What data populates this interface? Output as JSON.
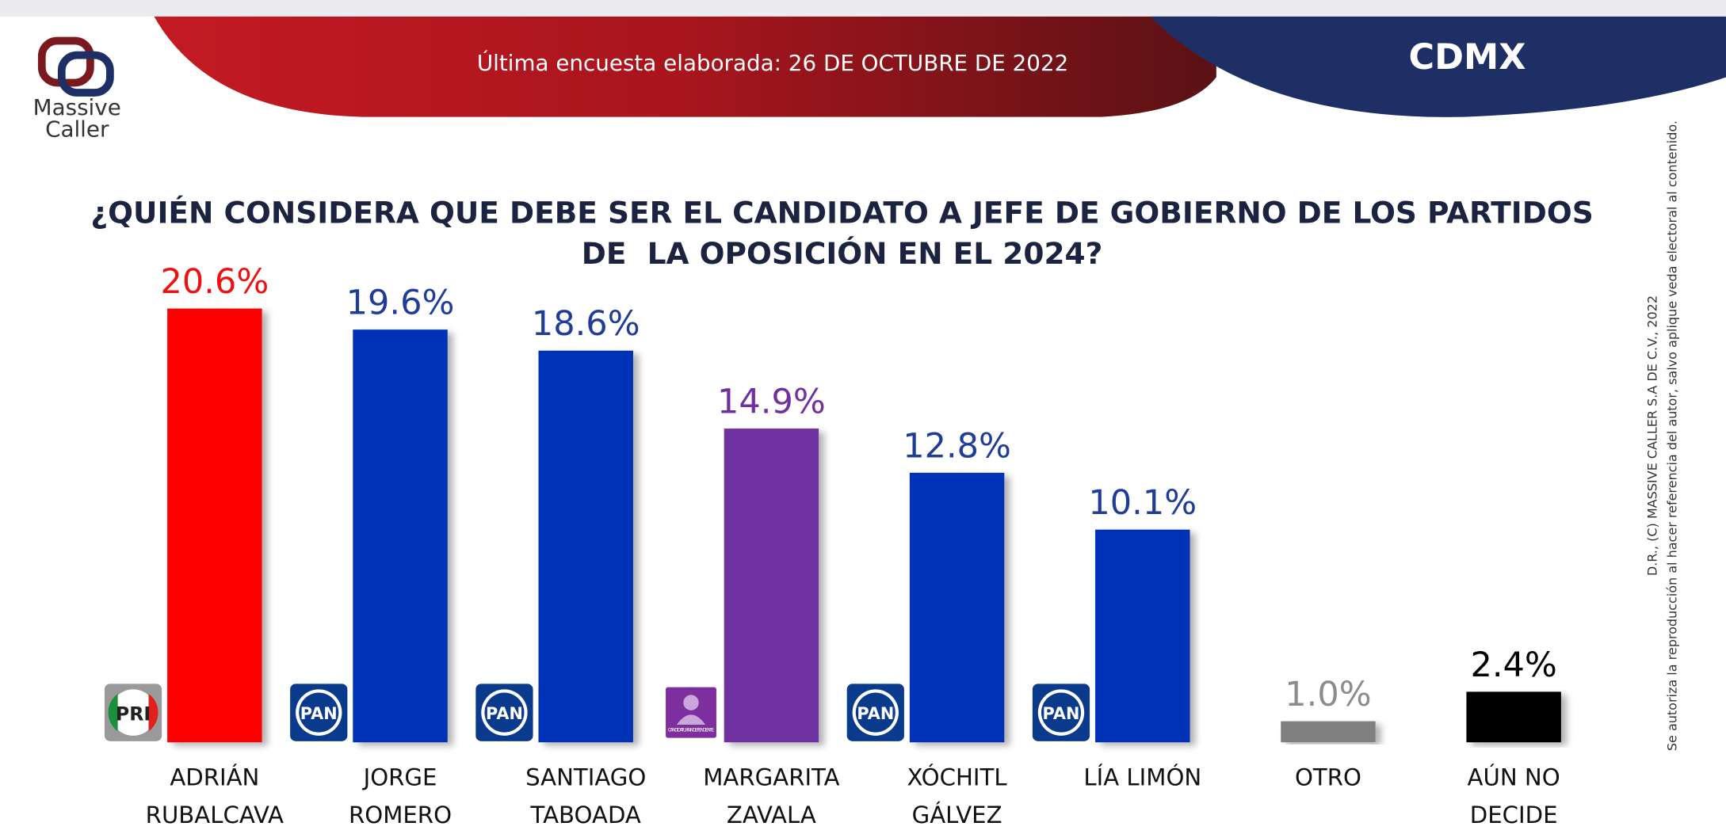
{
  "header": {
    "subtitle": "Última encuesta elaborada: 26 DE OCTUBRE DE 2022",
    "region": "CDMX",
    "logo_line1": "Massive",
    "logo_line2": "Caller"
  },
  "side_note": {
    "line1": "D.R., (C) MASSIVE CALLER S.A DE C.V., 2022",
    "line2": "Se autoriza la reproducción al hacer referencia del autor, salvo aplique veda electoral al contenido."
  },
  "chart_data": {
    "type": "bar",
    "title": "¿QUIÉN CONSIDERA QUE DEBE SER EL CANDIDATO A JEFE DE GOBIERNO DE LOS PARTIDOS DE  LA OPOSICIÓN EN EL 2024?",
    "categories": [
      "ADRIÁN\nRUBALCAVA",
      "JORGE\nROMERO",
      "SANTIAGO\nTABOADA",
      "MARGARITA\nZAVALA",
      "XÓCHITL\nGÁLVEZ",
      "LÍA LIMÓN",
      "OTRO",
      "AÚN NO DECIDE"
    ],
    "values": [
      20.6,
      19.6,
      18.6,
      14.9,
      12.8,
      10.1,
      1.0,
      2.4
    ],
    "value_labels": [
      "20.6%",
      "19.6%",
      "18.6%",
      "14.9%",
      "12.8%",
      "10.1%",
      "1.0%",
      "2.4%"
    ],
    "colors": [
      "#ff0000",
      "#0033b8",
      "#0033b8",
      "#7030a0",
      "#0033b8",
      "#0033b8",
      "#808080",
      "#000000"
    ],
    "label_colors": [
      "#ee1111",
      "#1f3c99",
      "#1f3c99",
      "#7030a0",
      "#1f3c99",
      "#1f3c99",
      "#8c8c8c",
      "#000000"
    ],
    "party_logos": [
      "PRI",
      "PAN",
      "PAN",
      "CANDIDATURA INDEPENDIENTE",
      "PAN",
      "PAN"
    ],
    "ylim": [
      0,
      22
    ]
  }
}
